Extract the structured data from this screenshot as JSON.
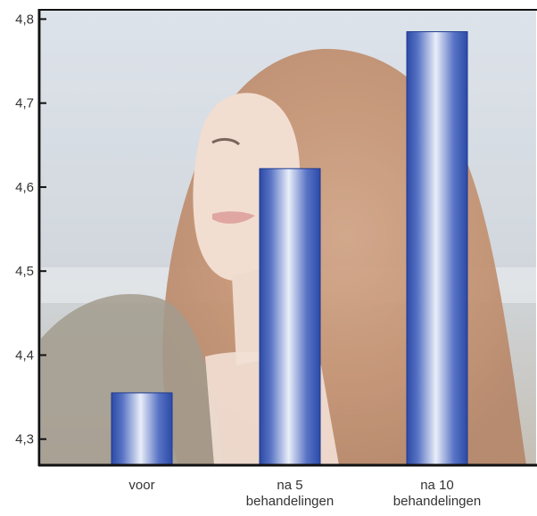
{
  "chart_data": {
    "type": "bar",
    "title": "",
    "xlabel": "",
    "ylabel": "",
    "categories": [
      [
        "voor"
      ],
      [
        "na  5",
        "behandelingen"
      ],
      [
        "na  10",
        "behandelingen"
      ]
    ],
    "values": [
      4.355,
      4.622,
      4.785
    ],
    "ylim": [
      4.27,
      4.81
    ],
    "yticks": [
      "4,3",
      "4,4",
      "4,5",
      "4,6",
      "4,7",
      "4,8"
    ],
    "ytick_values": [
      4.3,
      4.4,
      4.5,
      4.6,
      4.7,
      4.8
    ],
    "grid": false,
    "legend": "none",
    "background": "photo of a woman with long auburn hair",
    "colors": {
      "bar_dark": "#2c4aa8",
      "bar_light": "#e9eef9",
      "axis": "#111111",
      "tick_text": "#333333"
    }
  }
}
